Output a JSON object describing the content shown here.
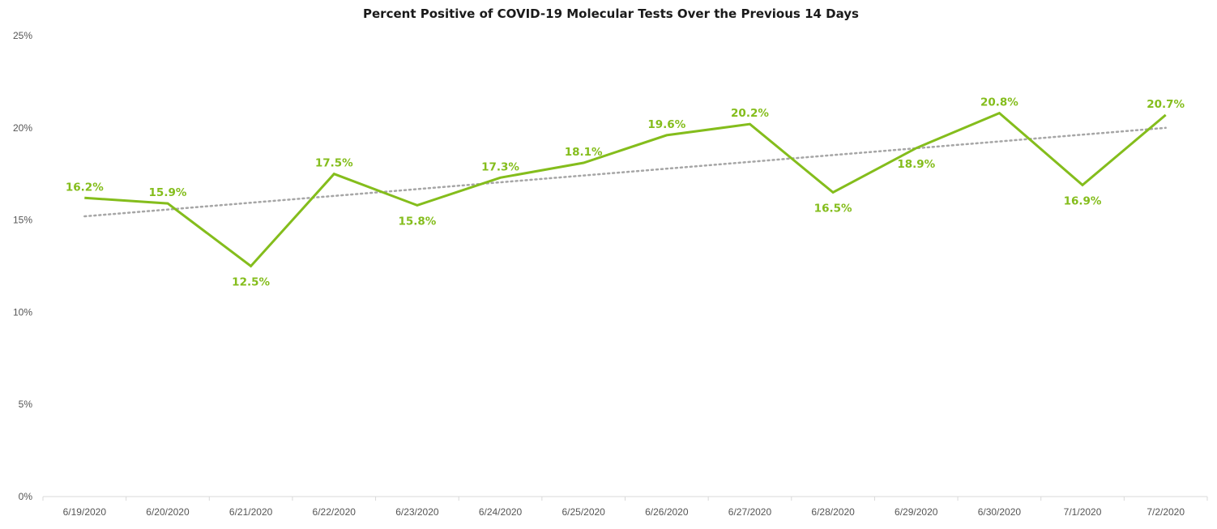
{
  "chart_data": {
    "type": "line",
    "title": "Percent Positive of COVID-19 Molecular Tests Over the Previous 14 Days",
    "xlabel": "",
    "ylabel": "",
    "categories": [
      "6/19/2020",
      "6/20/2020",
      "6/21/2020",
      "6/22/2020",
      "6/23/2020",
      "6/24/2020",
      "6/25/2020",
      "6/26/2020",
      "6/27/2020",
      "6/28/2020",
      "6/29/2020",
      "6/30/2020",
      "7/1/2020",
      "7/2/2020"
    ],
    "series": [
      {
        "values": [
          16.2,
          15.9,
          12.5,
          17.5,
          15.8,
          17.3,
          18.1,
          19.6,
          20.2,
          16.5,
          18.9,
          20.8,
          16.9,
          20.7
        ],
        "labels": [
          "16.2%",
          "15.9%",
          "12.5%",
          "17.5%",
          "15.8%",
          "17.3%",
          "18.1%",
          "19.6%",
          "20.2%",
          "16.5%",
          "18.9%",
          "20.8%",
          "16.9%",
          "20.7%"
        ],
        "label_side": [
          "above",
          "above",
          "below",
          "above",
          "below",
          "above",
          "above",
          "above",
          "above",
          "below",
          "below",
          "above",
          "below",
          "above"
        ],
        "color": "#84bd1c"
      }
    ],
    "trendline": {
      "style": "dotted",
      "color": "#a6a6a6",
      "start": 15.2,
      "end": 20.0
    },
    "ylim": [
      0,
      25
    ],
    "yticks": [
      0,
      5,
      10,
      15,
      20,
      25
    ],
    "ytick_labels": [
      "0%",
      "5%",
      "10%",
      "15%",
      "20%",
      "25%"
    ],
    "grid": false,
    "legend": "none"
  }
}
